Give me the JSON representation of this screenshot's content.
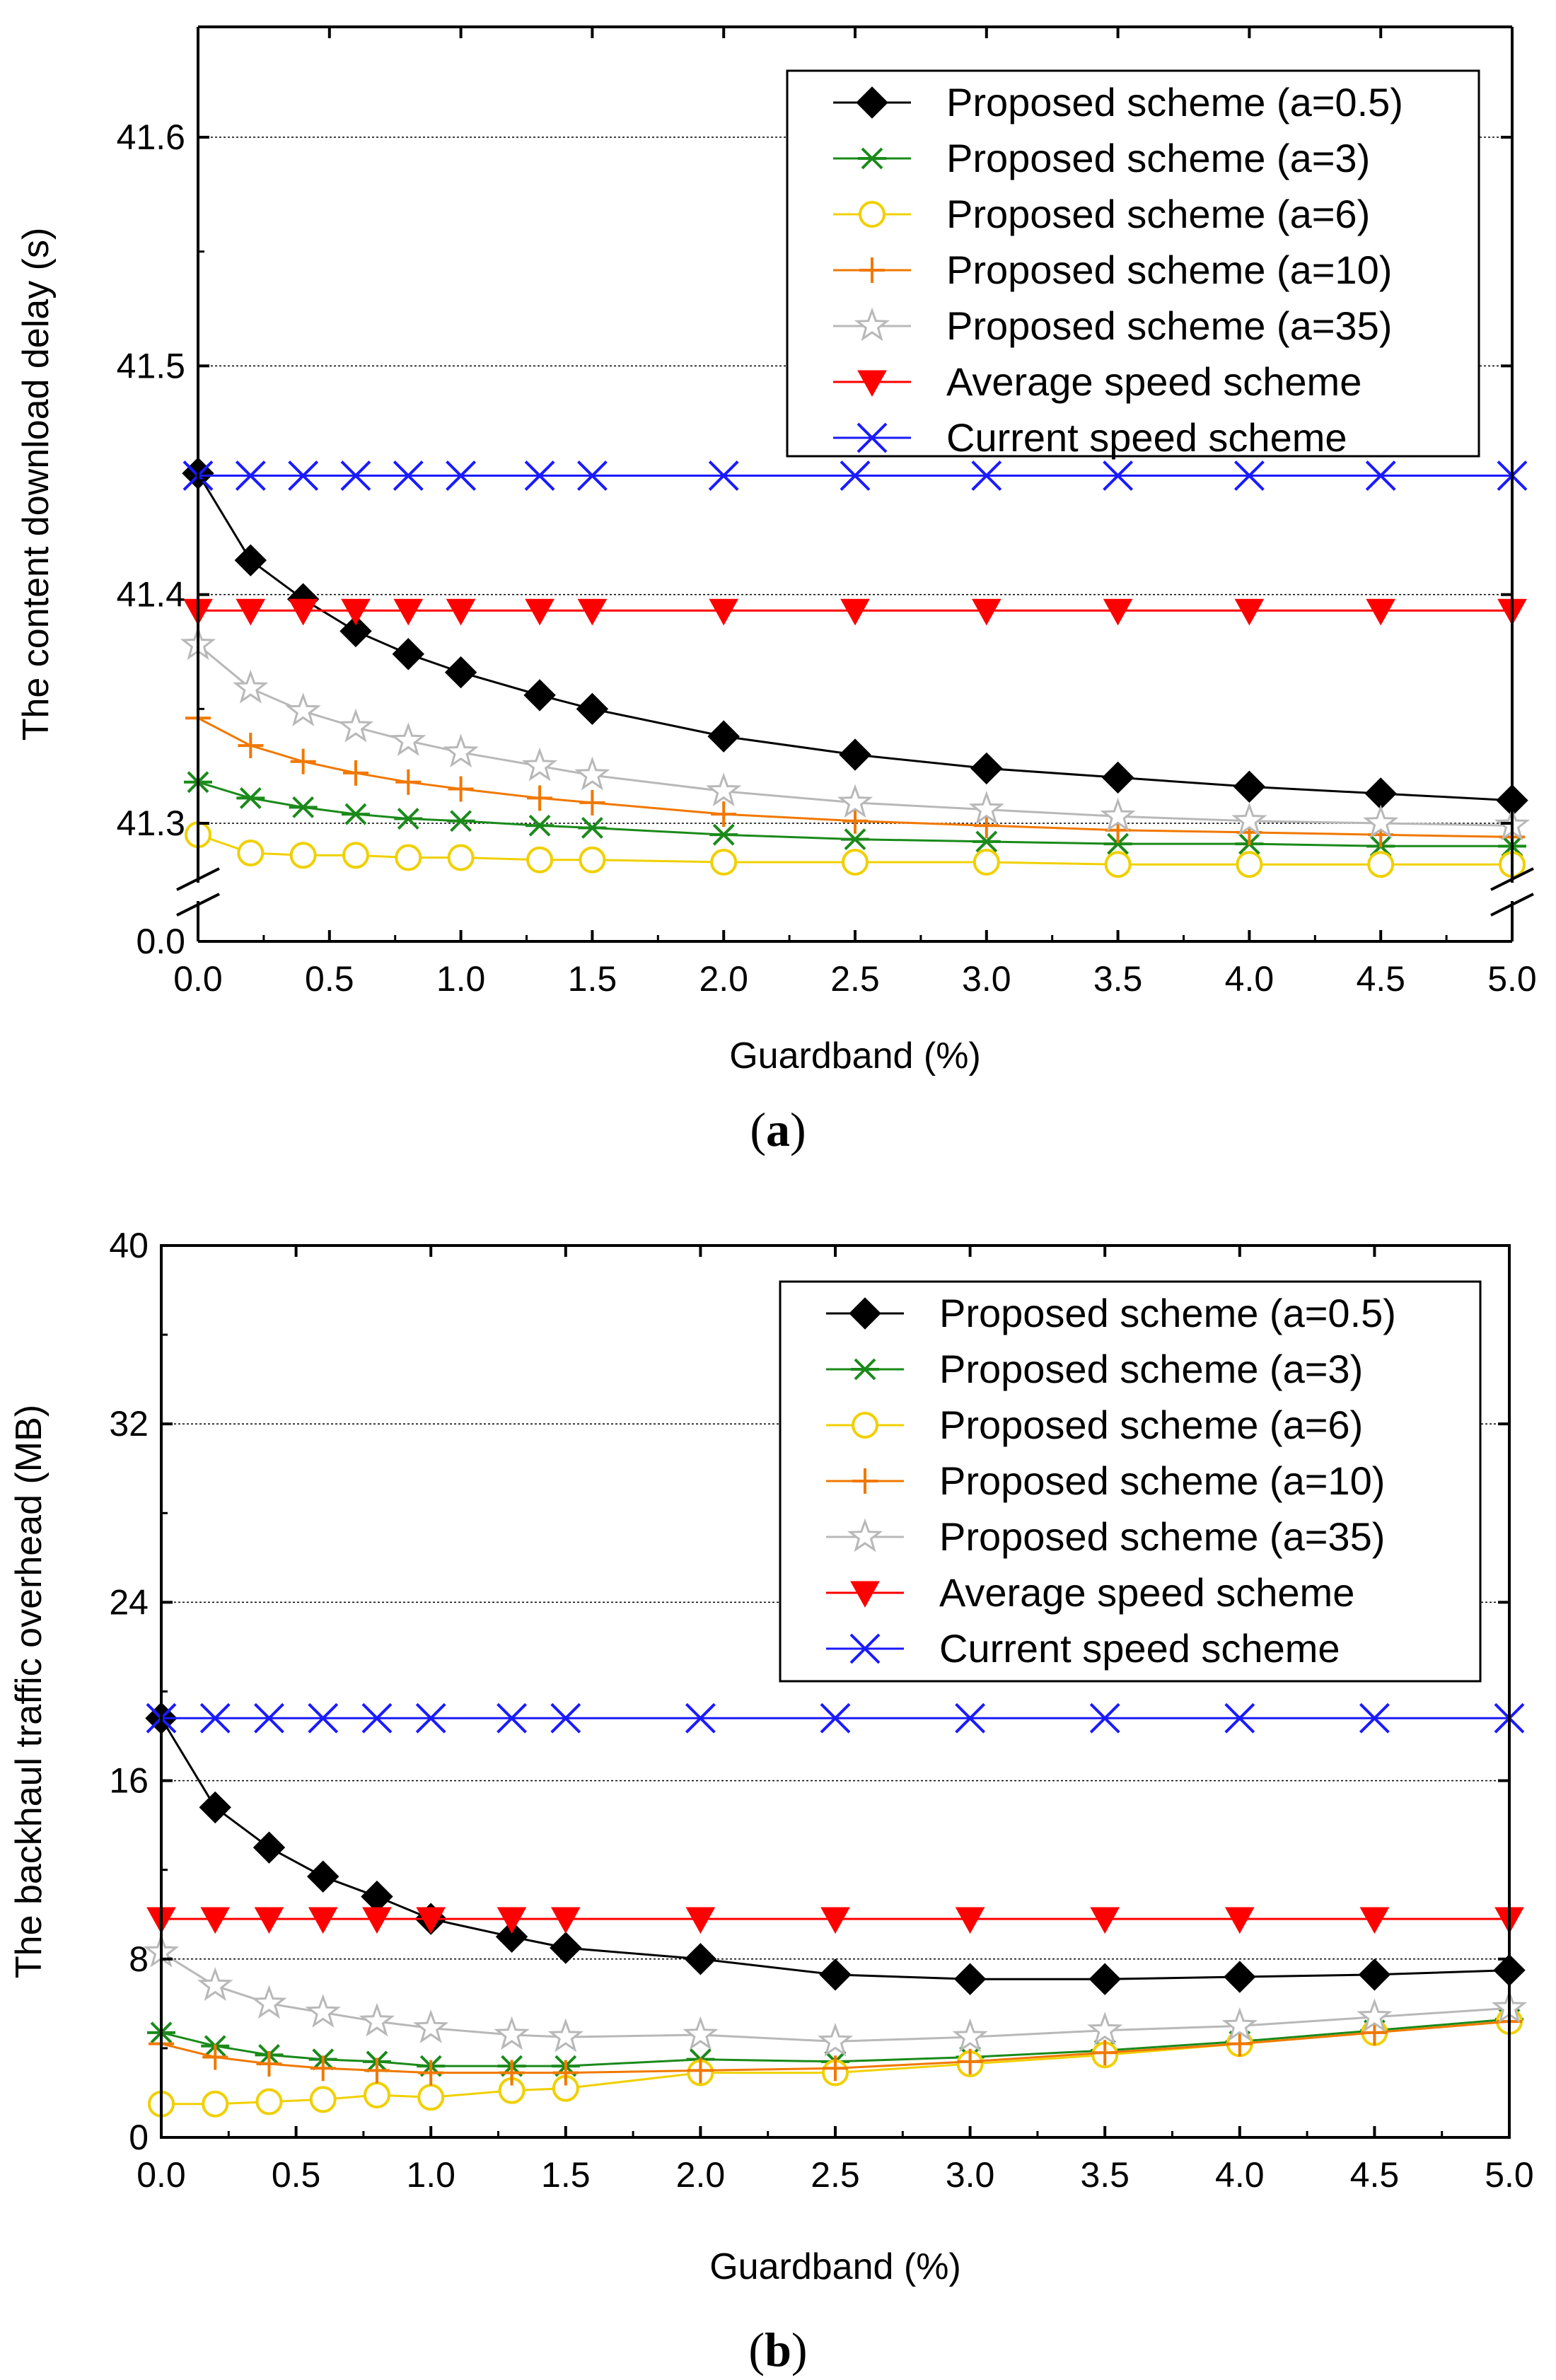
{
  "chart_data": [
    {
      "type": "line",
      "caption": "(a)",
      "xlabel": "Guardband (%)",
      "ylabel": "The content download delay (s)",
      "x": [
        0.0,
        0.2,
        0.4,
        0.6,
        0.8,
        1.0,
        1.3,
        1.5,
        2.0,
        2.5,
        3.0,
        3.5,
        4.0,
        4.5,
        5.0
      ],
      "xlim": [
        0.0,
        5.0
      ],
      "xticks": [
        "0.0",
        "0.5",
        "1.0",
        "1.5",
        "2.0",
        "2.5",
        "3.0",
        "3.5",
        "4.0",
        "4.5",
        "5.0"
      ],
      "ylim": [
        41.25,
        41.65
      ],
      "yticks": [
        "41.3",
        "41.4",
        "41.5",
        "41.6"
      ],
      "y_break_label": "0.0",
      "grid": true,
      "legend_position": "top-right",
      "series": [
        {
          "name": "Proposed scheme (a=0.5)",
          "marker": "diamond",
          "color": "#000000",
          "values": [
            41.453,
            41.415,
            41.398,
            41.384,
            41.374,
            41.366,
            41.356,
            41.35,
            41.338,
            41.33,
            41.324,
            41.32,
            41.316,
            41.313,
            41.31
          ]
        },
        {
          "name": "Proposed scheme (a=3)",
          "marker": "asterisk",
          "color": "#1a8a1a",
          "values": [
            41.318,
            41.311,
            41.307,
            41.304,
            41.302,
            41.301,
            41.299,
            41.298,
            41.295,
            41.293,
            41.292,
            41.291,
            41.291,
            41.29,
            41.29
          ]
        },
        {
          "name": "Proposed scheme (a=6)",
          "marker": "circle",
          "color": "#f0d000",
          "values": [
            41.295,
            41.287,
            41.286,
            41.286,
            41.285,
            41.285,
            41.284,
            41.284,
            41.283,
            41.283,
            41.283,
            41.282,
            41.282,
            41.282,
            41.282
          ]
        },
        {
          "name": "Proposed scheme (a=10)",
          "marker": "plus",
          "color": "#f07800",
          "values": [
            41.346,
            41.334,
            41.327,
            41.322,
            41.318,
            41.315,
            41.311,
            41.309,
            41.304,
            41.301,
            41.299,
            41.297,
            41.296,
            41.295,
            41.294
          ]
        },
        {
          "name": "Proposed scheme (a=35)",
          "marker": "star",
          "color": "#b8b8b8",
          "values": [
            41.378,
            41.359,
            41.349,
            41.342,
            41.336,
            41.331,
            41.325,
            41.321,
            41.314,
            41.309,
            41.306,
            41.303,
            41.301,
            41.3,
            41.299
          ]
        },
        {
          "name": "Average speed scheme",
          "marker": "triangle-down",
          "color": "#ff0000",
          "values": [
            41.393,
            41.393,
            41.393,
            41.393,
            41.393,
            41.393,
            41.393,
            41.393,
            41.393,
            41.393,
            41.393,
            41.393,
            41.393,
            41.393,
            41.393
          ]
        },
        {
          "name": "Current speed scheme",
          "marker": "x",
          "color": "#1a1aff",
          "values": [
            41.452,
            41.452,
            41.452,
            41.452,
            41.452,
            41.452,
            41.452,
            41.452,
            41.452,
            41.452,
            41.452,
            41.452,
            41.452,
            41.452,
            41.452
          ]
        }
      ]
    },
    {
      "type": "line",
      "caption": "(b)",
      "xlabel": "Guardband (%)",
      "ylabel": "The backhaul traffic overhead (MB)",
      "x": [
        0.0,
        0.2,
        0.4,
        0.6,
        0.8,
        1.0,
        1.3,
        1.5,
        2.0,
        2.5,
        3.0,
        3.5,
        4.0,
        4.5,
        5.0
      ],
      "xlim": [
        0.0,
        5.0
      ],
      "xticks": [
        "0.0",
        "0.5",
        "1.0",
        "1.5",
        "2.0",
        "2.5",
        "3.0",
        "3.5",
        "4.0",
        "4.5",
        "5.0"
      ],
      "ylim": [
        0,
        40
      ],
      "yticks": [
        "0",
        "8",
        "16",
        "24",
        "32",
        "40"
      ],
      "grid": true,
      "legend_position": "top-right",
      "series": [
        {
          "name": "Proposed scheme (a=0.5)",
          "marker": "diamond",
          "color": "#000000",
          "values": [
            18.8,
            14.8,
            13.0,
            11.7,
            10.8,
            9.8,
            9.0,
            8.5,
            8.0,
            7.3,
            7.1,
            7.1,
            7.2,
            7.3,
            7.5
          ]
        },
        {
          "name": "Proposed scheme (a=3)",
          "marker": "asterisk",
          "color": "#1a8a1a",
          "values": [
            4.7,
            4.1,
            3.7,
            3.5,
            3.4,
            3.2,
            3.2,
            3.2,
            3.5,
            3.4,
            3.6,
            3.9,
            4.3,
            4.8,
            5.3
          ]
        },
        {
          "name": "Proposed scheme (a=6)",
          "marker": "circle",
          "color": "#f0d000",
          "values": [
            1.5,
            1.5,
            1.6,
            1.7,
            1.9,
            1.8,
            2.1,
            2.2,
            2.9,
            2.9,
            3.3,
            3.7,
            4.2,
            4.7,
            5.2
          ]
        },
        {
          "name": "Proposed scheme (a=10)",
          "marker": "plus",
          "color": "#f07800",
          "values": [
            4.2,
            3.6,
            3.3,
            3.1,
            3.0,
            2.9,
            2.9,
            2.9,
            3.0,
            3.1,
            3.4,
            3.8,
            4.2,
            4.7,
            5.2
          ]
        },
        {
          "name": "Proposed scheme (a=35)",
          "marker": "star",
          "color": "#b8b8b8",
          "values": [
            8.3,
            6.8,
            6.0,
            5.6,
            5.2,
            4.9,
            4.6,
            4.5,
            4.6,
            4.3,
            4.5,
            4.8,
            5.0,
            5.4,
            5.8
          ]
        },
        {
          "name": "Average speed scheme",
          "marker": "triangle-down",
          "color": "#ff0000",
          "values": [
            9.8,
            9.8,
            9.8,
            9.8,
            9.8,
            9.8,
            9.8,
            9.8,
            9.8,
            9.8,
            9.8,
            9.8,
            9.8,
            9.8,
            9.8
          ]
        },
        {
          "name": "Current speed scheme",
          "marker": "x",
          "color": "#1a1aff",
          "values": [
            18.8,
            18.8,
            18.8,
            18.8,
            18.8,
            18.8,
            18.8,
            18.8,
            18.8,
            18.8,
            18.8,
            18.8,
            18.8,
            18.8,
            18.8
          ]
        }
      ]
    }
  ]
}
